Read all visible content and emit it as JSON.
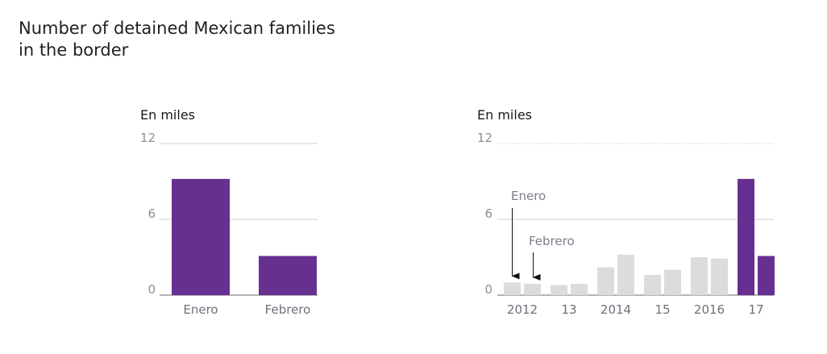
{
  "title": "Number of detained Mexican families in the border",
  "colors": {
    "highlight": "#673090",
    "muted": "#dcdcdc",
    "grid": "#d0d0d0",
    "axis": "#888888"
  },
  "chart_data": [
    {
      "type": "bar",
      "unit_label": "En miles",
      "ylim": [
        0,
        12
      ],
      "yticks": [
        0,
        6,
        12
      ],
      "categories": [
        "Enero",
        "Febrero"
      ],
      "values": [
        9.2,
        3.1
      ],
      "grid": true
    },
    {
      "type": "bar",
      "unit_label": "En miles",
      "ylim": [
        0,
        12
      ],
      "yticks": [
        0,
        6,
        12
      ],
      "x": [
        "2012-Enero",
        "2012-Febrero",
        "2013-Enero",
        "2013-Febrero",
        "2014-Enero",
        "2014-Febrero",
        "2015-Enero",
        "2015-Febrero",
        "2016-Enero",
        "2016-Febrero",
        "2017-Enero",
        "2017-Febrero"
      ],
      "values": [
        1.0,
        0.9,
        0.8,
        0.9,
        2.2,
        3.2,
        1.6,
        2.0,
        3.0,
        2.9,
        9.2,
        3.1
      ],
      "highlighted": [
        false,
        false,
        false,
        false,
        false,
        false,
        false,
        false,
        false,
        false,
        true,
        true
      ],
      "year_labels": [
        "2012",
        "13",
        "2014",
        "15",
        "2016",
        "17"
      ],
      "annotations": [
        {
          "text": "Enero",
          "points_to": "2012-Enero"
        },
        {
          "text": "Febrero",
          "points_to": "2012-Febrero"
        }
      ],
      "grid": true
    }
  ]
}
